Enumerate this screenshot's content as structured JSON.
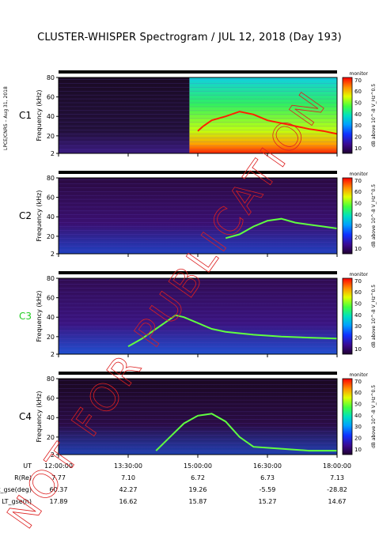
{
  "title": "CLUSTER-WHISPER Spectrogram / JUL 12, 2018 (Day 193)",
  "credit": "LPCE/CNRS – Aug 31, 2018",
  "watermark": "NOT FOR PUBLICATION",
  "chart_data": {
    "type": "heatmap",
    "y_axis_label": "Frequency (kHz)",
    "y_ticks": [
      "80",
      "60",
      "40",
      "20",
      "2"
    ],
    "ylim": [
      2,
      80
    ],
    "colorbar": {
      "label": "dB above 10^-8 V_Hz^0.5",
      "corner_label": "monitor",
      "ticks": [
        "70",
        "60",
        "50",
        "40",
        "30",
        "20",
        "10"
      ],
      "range": [
        5,
        72
      ]
    },
    "panels": [
      {
        "name": "C1",
        "color": "#000000",
        "plasma_line_khz": [
          [
            0.5,
            25
          ],
          [
            0.52,
            30
          ],
          [
            0.55,
            36
          ],
          [
            0.6,
            40
          ],
          [
            0.65,
            45
          ],
          [
            0.7,
            42
          ],
          [
            0.75,
            36
          ],
          [
            0.8,
            33
          ],
          [
            0.85,
            30
          ],
          [
            0.9,
            27
          ],
          [
            0.95,
            25
          ],
          [
            1.0,
            22
          ]
        ]
      },
      {
        "name": "C2",
        "color": "#000000",
        "plasma_line_khz": [
          [
            0.6,
            18
          ],
          [
            0.65,
            22
          ],
          [
            0.7,
            30
          ],
          [
            0.75,
            36
          ],
          [
            0.8,
            38
          ],
          [
            0.85,
            34
          ],
          [
            0.9,
            32
          ],
          [
            0.95,
            30
          ],
          [
            1.0,
            28
          ]
        ]
      },
      {
        "name": "C3",
        "color": "#22cc22",
        "plasma_line_khz": [
          [
            0.25,
            10
          ],
          [
            0.3,
            18
          ],
          [
            0.35,
            28
          ],
          [
            0.4,
            38
          ],
          [
            0.42,
            42
          ],
          [
            0.45,
            40
          ],
          [
            0.5,
            34
          ],
          [
            0.55,
            28
          ],
          [
            0.6,
            25
          ],
          [
            0.7,
            22
          ],
          [
            0.8,
            20
          ],
          [
            0.9,
            19
          ],
          [
            1.0,
            18
          ]
        ]
      },
      {
        "name": "C4",
        "color": "#000000",
        "plasma_line_khz": [
          [
            0.35,
            6
          ],
          [
            0.4,
            20
          ],
          [
            0.45,
            34
          ],
          [
            0.5,
            42
          ],
          [
            0.55,
            44
          ],
          [
            0.6,
            36
          ],
          [
            0.65,
            20
          ],
          [
            0.7,
            10
          ],
          [
            0.8,
            8
          ],
          [
            0.9,
            6
          ],
          [
            1.0,
            6
          ]
        ]
      }
    ],
    "time_axis": {
      "label": "UT",
      "ticks": [
        "12:00:00",
        "13:30:00",
        "15:00:00",
        "16:30:00",
        "18:00:00"
      ]
    },
    "ephemeris": [
      {
        "label": "R(Re)",
        "values": [
          "7.77",
          "7.10",
          "6.72",
          "6.73",
          "7.13"
        ]
      },
      {
        "label": "Lat_gse(deg)",
        "values": [
          "60.37",
          "42.27",
          "19.26",
          "-5.59",
          "-28.82"
        ]
      },
      {
        "label": "LT_gse(h)",
        "values": [
          "17.89",
          "16.62",
          "15.87",
          "15.27",
          "14.67"
        ]
      }
    ]
  }
}
